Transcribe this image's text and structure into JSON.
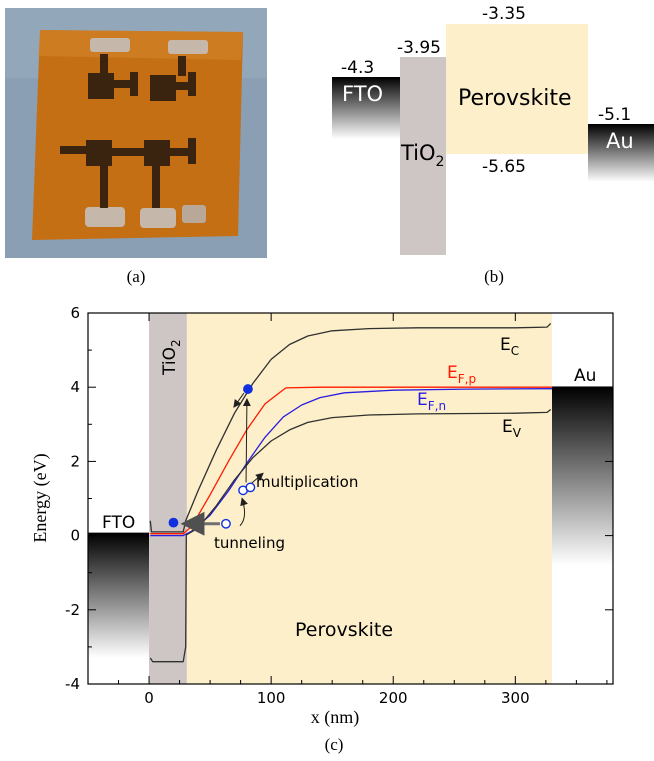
{
  "panel_a": {
    "caption": "(a)",
    "colors": {
      "background": "#8a9fb4",
      "substrate": "#c46f14",
      "electrode": "#3a2410",
      "contact": "#c5b8aa"
    }
  },
  "panel_b": {
    "caption": "(b)",
    "fto": {
      "label": "FTO",
      "level": "-4.3"
    },
    "tio2": {
      "label": "TiO",
      "sub": "2",
      "level": "-3.95"
    },
    "perovskite": {
      "label": "Perovskite",
      "top_level": "-3.35",
      "bottom_level": "-5.65"
    },
    "au": {
      "label": "Au",
      "level": "-5.1"
    },
    "colors": {
      "tio2": "#cdc6c4",
      "perovskite": "#fdefca"
    }
  },
  "panel_c": {
    "caption": "(c)",
    "xlabel": "x (nm)",
    "ylabel": "Energy (eV)",
    "xlim": [
      -50,
      380
    ],
    "ylim": [
      -4,
      6
    ],
    "xticks": [
      0,
      100,
      200,
      300
    ],
    "yticks": [
      -4,
      -2,
      0,
      2,
      4,
      6
    ],
    "regions": {
      "tio2": {
        "label": "TiO",
        "sub": "2",
        "x_range": [
          0,
          31
        ]
      },
      "perovskite": {
        "label": "Perovskite",
        "x_range": [
          31,
          330
        ]
      },
      "fto": {
        "label": "FTO",
        "level": 0.08
      },
      "au": {
        "label": "Au",
        "level": 4.02
      }
    },
    "colors": {
      "tio2": "#cdc6c4",
      "perovskite": "#fdefca",
      "efp": "#ff1a00",
      "efn": "#2a1ee0",
      "bands": "#303030",
      "dots": "#1030e0"
    },
    "curves": [
      {
        "id": "ec",
        "label": "E",
        "sub": "C",
        "color_key": "bands",
        "points": [
          [
            1,
            0.4
          ],
          [
            2,
            0.1
          ],
          [
            28,
            0.1
          ],
          [
            30,
            0.4
          ],
          [
            40,
            1.2
          ],
          [
            55,
            2.3
          ],
          [
            70,
            3.3
          ],
          [
            85,
            4.1
          ],
          [
            100,
            4.75
          ],
          [
            115,
            5.15
          ],
          [
            130,
            5.38
          ],
          [
            150,
            5.52
          ],
          [
            180,
            5.58
          ],
          [
            220,
            5.6
          ],
          [
            300,
            5.6
          ],
          [
            326,
            5.62
          ],
          [
            329,
            5.72
          ]
        ]
      },
      {
        "id": "efp",
        "label": "E",
        "sub": "F,p",
        "color_key": "efp",
        "points": [
          [
            1,
            0.05
          ],
          [
            28,
            0.05
          ],
          [
            35,
            0.25
          ],
          [
            50,
            1.1
          ],
          [
            65,
            2.0
          ],
          [
            80,
            2.85
          ],
          [
            95,
            3.55
          ],
          [
            112,
            3.98
          ],
          [
            140,
            4.0
          ],
          [
            250,
            4.0
          ],
          [
            330,
            4.0
          ]
        ]
      },
      {
        "id": "efn",
        "label": "E",
        "sub": "F,n",
        "color_key": "efn",
        "points": [
          [
            1,
            0.0
          ],
          [
            28,
            0.0
          ],
          [
            35,
            0.12
          ],
          [
            50,
            0.55
          ],
          [
            65,
            1.2
          ],
          [
            80,
            1.95
          ],
          [
            95,
            2.65
          ],
          [
            110,
            3.2
          ],
          [
            125,
            3.52
          ],
          [
            140,
            3.72
          ],
          [
            160,
            3.85
          ],
          [
            200,
            3.92
          ],
          [
            260,
            3.95
          ],
          [
            330,
            3.96
          ]
        ]
      },
      {
        "id": "ev",
        "label": "E",
        "sub": "V",
        "color_key": "bands",
        "points": [
          [
            1,
            -3.3
          ],
          [
            3,
            -3.4
          ],
          [
            28,
            -3.4
          ],
          [
            30,
            -3.0
          ],
          [
            30.5,
            0.02
          ],
          [
            40,
            0.2
          ],
          [
            55,
            0.8
          ],
          [
            70,
            1.5
          ],
          [
            85,
            2.1
          ],
          [
            100,
            2.55
          ],
          [
            115,
            2.85
          ],
          [
            130,
            3.05
          ],
          [
            150,
            3.18
          ],
          [
            180,
            3.25
          ],
          [
            220,
            3.28
          ],
          [
            300,
            3.3
          ],
          [
            326,
            3.32
          ],
          [
            329,
            3.4
          ]
        ]
      }
    ],
    "carriers": [
      {
        "type": "electron",
        "x": 20,
        "y": 0.35
      },
      {
        "type": "electron",
        "x": 81,
        "y": 3.95
      },
      {
        "type": "hole",
        "x": 63,
        "y": 0.32
      },
      {
        "type": "hole",
        "x": 77,
        "y": 1.22
      },
      {
        "type": "hole",
        "x": 83,
        "y": 1.3
      }
    ],
    "annotations": {
      "multiplication": "multiplication",
      "tunneling": "tunneling"
    }
  }
}
